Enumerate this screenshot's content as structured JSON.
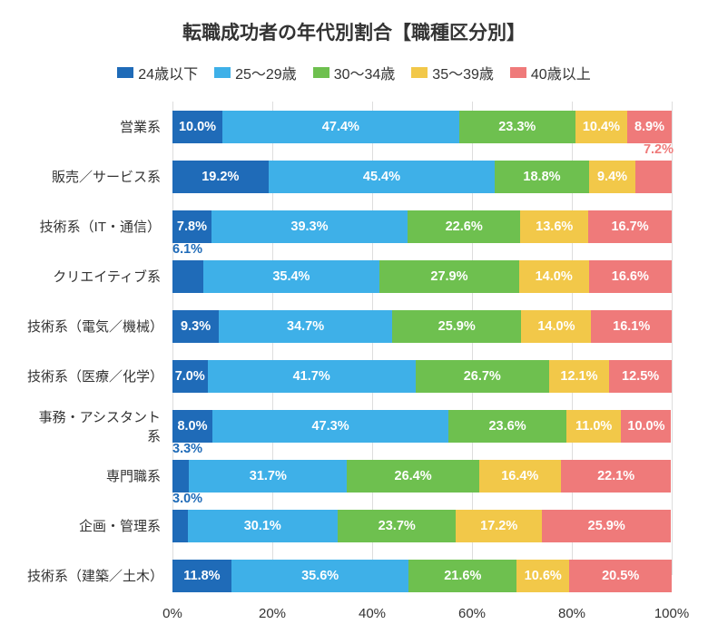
{
  "chart": {
    "type": "stacked-bar-horizontal",
    "title": "転職成功者の年代別割合【職種区分別】",
    "title_fontsize": 21,
    "background_color": "#ffffff",
    "grid_color": "#dddddd",
    "label_fontsize": 15,
    "value_fontsize": 14.5,
    "value_color": "#ffffff",
    "xaxis": {
      "min": 0,
      "max": 100,
      "tick_step": 20,
      "ticks": [
        "0%",
        "20%",
        "40%",
        "60%",
        "80%",
        "100%"
      ]
    },
    "legend": {
      "position": "top",
      "items": [
        {
          "label": "24歳以下",
          "color": "#1f6bb8"
        },
        {
          "label": "25～29歳",
          "color": "#3eb0e8"
        },
        {
          "label": "30～34歳",
          "color": "#6ec04f"
        },
        {
          "label": "35～39歳",
          "color": "#f2c849"
        },
        {
          "label": "40歳以上",
          "color": "#ef7a7a"
        }
      ]
    },
    "series_colors": [
      "#1f6bb8",
      "#3eb0e8",
      "#6ec04f",
      "#f2c849",
      "#ef7a7a"
    ],
    "categories": [
      {
        "label": "営業系",
        "values": [
          10.0,
          47.4,
          23.3,
          10.4,
          8.9
        ],
        "display": [
          "10.0%",
          "47.4%",
          "23.3%",
          "10.4%",
          "8.9%"
        ],
        "callouts": []
      },
      {
        "label": "販売／サービス系",
        "values": [
          19.2,
          45.4,
          18.8,
          9.4,
          7.2
        ],
        "display": [
          "19.2%",
          "45.4%",
          "18.8%",
          "9.4%",
          "7.2%"
        ],
        "callouts": [
          {
            "index": 4,
            "text": "7.2%",
            "color": "#ef7a7a",
            "pos": "above-right"
          }
        ]
      },
      {
        "label": "技術系（IT・通信）",
        "values": [
          7.8,
          39.3,
          22.6,
          13.6,
          16.7
        ],
        "display": [
          "7.8%",
          "39.3%",
          "22.6%",
          "13.6%",
          "16.7%"
        ],
        "callouts": []
      },
      {
        "label": "クリエイティブ系",
        "values": [
          6.1,
          35.4,
          27.9,
          14.0,
          16.6
        ],
        "display": [
          "6.1%",
          "35.4%",
          "27.9%",
          "14.0%",
          "16.6%"
        ],
        "callouts": [
          {
            "index": 0,
            "text": "6.1%",
            "color": "#1f6bb8",
            "pos": "above-left"
          }
        ]
      },
      {
        "label": "技術系（電気／機械）",
        "values": [
          9.3,
          34.7,
          25.9,
          14.0,
          16.1
        ],
        "display": [
          "9.3%",
          "34.7%",
          "25.9%",
          "14.0%",
          "16.1%"
        ],
        "callouts": []
      },
      {
        "label": "技術系（医療／化学）",
        "values": [
          7.0,
          41.7,
          26.7,
          12.1,
          12.5
        ],
        "display": [
          "7.0%",
          "41.7%",
          "26.7%",
          "12.1%",
          "12.5%"
        ],
        "callouts": []
      },
      {
        "label": "事務・アシスタント系",
        "values": [
          8.0,
          47.3,
          23.6,
          11.0,
          10.0
        ],
        "display": [
          "8.0%",
          "47.3%",
          "23.6%",
          "11.0%",
          "10.0%"
        ],
        "callouts": []
      },
      {
        "label": "専門職系",
        "values": [
          3.3,
          31.7,
          26.4,
          16.4,
          22.1
        ],
        "display": [
          "3.3%",
          "31.7%",
          "26.4%",
          "16.4%",
          "22.1%"
        ],
        "callouts": [
          {
            "index": 0,
            "text": "3.3%",
            "color": "#1f6bb8",
            "pos": "above-left"
          }
        ]
      },
      {
        "label": "企画・管理系",
        "values": [
          3.0,
          30.1,
          23.7,
          17.2,
          25.9
        ],
        "display": [
          "3.0%",
          "30.1%",
          "23.7%",
          "17.2%",
          "25.9%"
        ],
        "callouts": [
          {
            "index": 0,
            "text": "3.0%",
            "color": "#1f6bb8",
            "pos": "above-left"
          }
        ]
      },
      {
        "label": "技術系（建築／土木）",
        "values": [
          11.8,
          35.6,
          21.6,
          10.6,
          20.5
        ],
        "display": [
          "11.8%",
          "35.6%",
          "21.6%",
          "10.6%",
          "20.5%"
        ],
        "callouts": []
      }
    ]
  }
}
